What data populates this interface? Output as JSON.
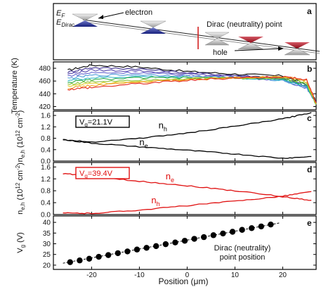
{
  "figure": {
    "xlabel": "Position (μm)",
    "x_ticks": [
      "-20",
      "-10",
      "0",
      "10",
      "20"
    ]
  },
  "chart_data": [
    {
      "panel": "a",
      "type": "diagram",
      "labels": {
        "ef": "E",
        "ef_sub": "F",
        "edirac": "E",
        "edirac_sub": "Dirac",
        "electron": "electron",
        "dirac_point": "Dirac (neutrality) point",
        "hole": "hole"
      },
      "colors": {
        "electron": "#1f2f9a",
        "hole": "#b01020",
        "neutral": "#cc2222"
      }
    },
    {
      "panel": "b",
      "type": "line",
      "ylabel": "Temperature (K)",
      "yticks": [
        420,
        440,
        460,
        480
      ],
      "xlim": [
        -28,
        27
      ],
      "ylim": [
        415,
        490
      ],
      "series": [
        {
          "color": "#000000",
          "values": [
            [
              -25,
              477
            ],
            [
              -20,
              485
            ],
            [
              -10,
              482
            ],
            [
              0,
              475
            ],
            [
              10,
              471
            ],
            [
              20,
              468
            ],
            [
              25,
              455
            ],
            [
              27,
              428
            ]
          ]
        },
        {
          "color": "#3b2c8f",
          "values": [
            [
              -25,
              474
            ],
            [
              -20,
              481
            ],
            [
              -10,
              479
            ],
            [
              0,
              473
            ],
            [
              10,
              469
            ],
            [
              20,
              465
            ],
            [
              25,
              452
            ],
            [
              27,
              428
            ]
          ]
        },
        {
          "color": "#5a4ab0",
          "values": [
            [
              -25,
              471
            ],
            [
              -20,
              477
            ],
            [
              -10,
              476
            ],
            [
              0,
              471
            ],
            [
              10,
              467
            ],
            [
              20,
              463
            ],
            [
              25,
              450
            ],
            [
              27,
              427
            ]
          ]
        },
        {
          "color": "#6a6ad0",
          "values": [
            [
              -25,
              468
            ],
            [
              -20,
              473
            ],
            [
              -10,
              473
            ],
            [
              0,
              469
            ],
            [
              10,
              466
            ],
            [
              20,
              461
            ],
            [
              25,
              449
            ],
            [
              27,
              426
            ]
          ]
        },
        {
          "color": "#4f9cd9",
          "values": [
            [
              -25,
              464
            ],
            [
              -20,
              469
            ],
            [
              -10,
              470
            ],
            [
              0,
              468
            ],
            [
              10,
              465
            ],
            [
              20,
              461
            ],
            [
              25,
              450
            ],
            [
              27,
              425
            ]
          ]
        },
        {
          "color": "#2fb7c3",
          "values": [
            [
              -25,
              461
            ],
            [
              -20,
              465
            ],
            [
              -10,
              467
            ],
            [
              0,
              466
            ],
            [
              10,
              465
            ],
            [
              20,
              462
            ],
            [
              25,
              452
            ],
            [
              27,
              424
            ]
          ]
        },
        {
          "color": "#2fae4b",
          "values": [
            [
              -25,
              458
            ],
            [
              -20,
              462
            ],
            [
              -10,
              465
            ],
            [
              0,
              465
            ],
            [
              10,
              465
            ],
            [
              20,
              463
            ],
            [
              25,
              454
            ],
            [
              27,
              423
            ]
          ]
        },
        {
          "color": "#8fc23a",
          "values": [
            [
              -25,
              455
            ],
            [
              -20,
              459
            ],
            [
              -10,
              462
            ],
            [
              0,
              464
            ],
            [
              10,
              465
            ],
            [
              20,
              465
            ],
            [
              25,
              457
            ],
            [
              27,
              423
            ]
          ]
        },
        {
          "color": "#e0cf2a",
          "values": [
            [
              -25,
              452
            ],
            [
              -20,
              456
            ],
            [
              -10,
              460
            ],
            [
              0,
              463
            ],
            [
              10,
              465
            ],
            [
              20,
              466
            ],
            [
              25,
              459
            ],
            [
              27,
              424
            ]
          ]
        },
        {
          "color": "#f29a25",
          "values": [
            [
              -25,
              449
            ],
            [
              -20,
              453
            ],
            [
              -10,
              458
            ],
            [
              0,
              462
            ],
            [
              10,
              465
            ],
            [
              20,
              467
            ],
            [
              25,
              461
            ],
            [
              27,
              425
            ]
          ]
        },
        {
          "color": "#e4291e",
          "values": [
            [
              -25,
              447
            ],
            [
              -20,
              450
            ],
            [
              -10,
              456
            ],
            [
              0,
              461
            ],
            [
              10,
              465
            ],
            [
              20,
              467
            ],
            [
              25,
              462
            ],
            [
              27,
              426
            ]
          ]
        }
      ]
    },
    {
      "panel": "c",
      "type": "line",
      "ylabel_main": "n",
      "ylabel_sub": "e,h",
      "ylabel_rest": "(10",
      "ylabel_sup": "12",
      "ylabel_unit": "cm",
      "ylabel_unit_sup": "-2",
      "ylabel_close": ")",
      "yticks": [
        "0.0",
        "0.4",
        "0.8",
        "1.2",
        "1.6"
      ],
      "xlim": [
        -28,
        27
      ],
      "ylim": [
        0,
        1.75
      ],
      "vg_label": "V",
      "vg_sub": "g",
      "vg_value": "=21.1V",
      "series": [
        {
          "name_main": "n",
          "name_sub": "h",
          "color": "#000000",
          "values": [
            [
              -26,
              0.75
            ],
            [
              -20,
              0.67
            ],
            [
              -10,
              0.8
            ],
            [
              0,
              0.98
            ],
            [
              10,
              1.22
            ],
            [
              20,
              1.48
            ],
            [
              26,
              1.7
            ]
          ]
        },
        {
          "name_main": "n",
          "name_sub": "e",
          "color": "#000000",
          "values": [
            [
              -26,
              0.75
            ],
            [
              -20,
              0.63
            ],
            [
              -10,
              0.5
            ],
            [
              0,
              0.38
            ],
            [
              10,
              0.25
            ],
            [
              20,
              0.1
            ],
            [
              26,
              0.16
            ]
          ]
        }
      ]
    },
    {
      "panel": "d",
      "type": "line",
      "ylabel_main": "n",
      "ylabel_sub": "e,h",
      "ylabel_rest": "(10",
      "ylabel_sup": "12",
      "ylabel_unit": "cm",
      "ylabel_unit_sup": "-2",
      "ylabel_close": ")",
      "yticks": [
        "0.0",
        "0.4",
        "0.8",
        "1.2",
        "1.6"
      ],
      "xlim": [
        -28,
        27
      ],
      "ylim": [
        0,
        1.75
      ],
      "vg_label": "V",
      "vg_sub": "g",
      "vg_value": "=39.4V",
      "series": [
        {
          "name_main": "n",
          "name_sub": "e",
          "color": "#e01010",
          "values": [
            [
              -26,
              1.38
            ],
            [
              -20,
              1.28
            ],
            [
              -10,
              1.12
            ],
            [
              0,
              0.97
            ],
            [
              10,
              0.8
            ],
            [
              20,
              0.6
            ],
            [
              26,
              0.48
            ]
          ]
        },
        {
          "name_main": "n",
          "name_sub": "h",
          "color": "#e01010",
          "values": [
            [
              -26,
              0.05
            ],
            [
              -20,
              0.04
            ],
            [
              -10,
              0.15
            ],
            [
              0,
              0.3
            ],
            [
              10,
              0.45
            ],
            [
              20,
              0.62
            ],
            [
              26,
              0.77
            ]
          ]
        }
      ]
    },
    {
      "panel": "e",
      "type": "scatter",
      "ylabel_main": "V",
      "ylabel_sub": "g",
      "ylabel_rest": "(V)",
      "yticks": [
        "20",
        "25",
        "30",
        "35",
        "40"
      ],
      "xlim": [
        -28,
        27
      ],
      "ylim": [
        18,
        43
      ],
      "annotation_line1": "Dirac (neutrality)",
      "annotation_line2": "point position",
      "points": [
        [
          -24.5,
          21.4
        ],
        [
          -22.5,
          22.2
        ],
        [
          -20.5,
          23
        ],
        [
          -18.5,
          23.9
        ],
        [
          -16.5,
          24.7
        ],
        [
          -14.5,
          25.6
        ],
        [
          -12.5,
          26.4
        ],
        [
          -10.5,
          27.3
        ],
        [
          -8.5,
          28.1
        ],
        [
          -6.5,
          28.9
        ],
        [
          -4.5,
          29.8
        ],
        [
          -2.5,
          30.6
        ],
        [
          -0.5,
          31.4
        ],
        [
          1.5,
          32.3
        ],
        [
          3.5,
          33.1
        ],
        [
          5.5,
          34
        ],
        [
          7.5,
          34.8
        ],
        [
          9.5,
          35.6
        ],
        [
          11.5,
          36.5
        ],
        [
          13.5,
          37.3
        ],
        [
          15.5,
          38.1
        ],
        [
          17.5,
          39
        ]
      ],
      "fit": [
        [
          -26,
          20.9
        ],
        [
          19.5,
          39.8
        ]
      ]
    }
  ]
}
